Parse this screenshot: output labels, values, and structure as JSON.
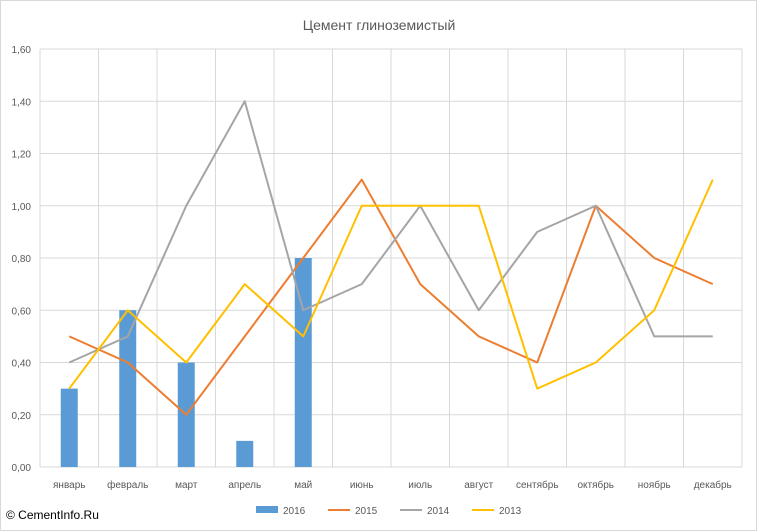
{
  "chart_data": {
    "type": "bar+line",
    "title": "Цемент глиноземистый",
    "categories": [
      "январь",
      "февраль",
      "март",
      "апрель",
      "май",
      "июнь",
      "июль",
      "август",
      "сентябрь",
      "октябрь",
      "ноябрь",
      "декабрь"
    ],
    "ylim": [
      0,
      1.6
    ],
    "yticks": [
      "0,00",
      "0,20",
      "0,40",
      "0,60",
      "0,80",
      "1,00",
      "1,20",
      "1,40",
      "1,60"
    ],
    "ytick_values": [
      0,
      0.2,
      0.4,
      0.6,
      0.8,
      1.0,
      1.2,
      1.4,
      1.6
    ],
    "grid": true,
    "legend_position": "bottom",
    "series": [
      {
        "name": "2016",
        "kind": "bar",
        "color": "#5b9bd5",
        "values": [
          0.3,
          0.6,
          0.4,
          0.1,
          0.8,
          null,
          null,
          null,
          null,
          null,
          null,
          null
        ]
      },
      {
        "name": "2015",
        "kind": "line",
        "color": "#ed7d31",
        "values": [
          0.5,
          0.4,
          0.2,
          0.5,
          0.8,
          1.1,
          0.7,
          0.5,
          0.4,
          1.0,
          0.8,
          0.7
        ]
      },
      {
        "name": "2014",
        "kind": "line",
        "color": "#a5a5a5",
        "values": [
          0.4,
          0.5,
          1.0,
          1.4,
          0.6,
          0.7,
          1.0,
          0.6,
          0.9,
          1.0,
          0.5,
          0.5
        ]
      },
      {
        "name": "2013",
        "kind": "line",
        "color": "#ffc000",
        "values": [
          0.3,
          0.6,
          0.4,
          0.7,
          0.5,
          1.0,
          1.0,
          1.0,
          0.3,
          0.4,
          0.6,
          1.1
        ]
      }
    ]
  },
  "watermark": "© CementInfo.Ru"
}
